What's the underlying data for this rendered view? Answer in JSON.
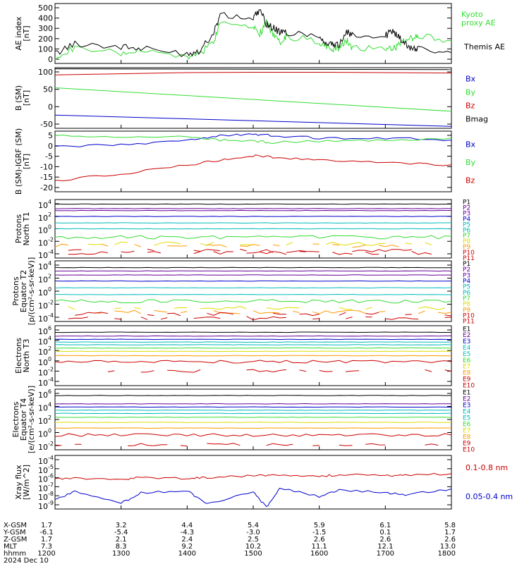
{
  "colors": {
    "black": "#000000",
    "red": "#cc0000",
    "green": "#33dd33",
    "blue": "#0000cc",
    "purple": "#660099",
    "cyan": "#00bbbb",
    "yellow": "#dddd00",
    "orange": "#ff9900"
  },
  "chart_data": [
    {
      "type": "line",
      "ylabel": [
        "AE index",
        "[nT]"
      ],
      "yticks": [
        "500",
        "400",
        "300",
        "200",
        "100",
        "0"
      ],
      "ylim": [
        0,
        500
      ],
      "series": [
        {
          "name": "Kyoto proxy AE",
          "name_lines": [
            "Kyoto",
            "proxy AE"
          ],
          "color": "green",
          "x": [
            1200,
            1230,
            1300,
            1330,
            1400,
            1420,
            1440,
            1450,
            1500,
            1510,
            1520,
            1530,
            1540,
            1550,
            1600,
            1610,
            1620,
            1630,
            1640,
            1650,
            1700,
            1710,
            1720,
            1730,
            1740,
            1750,
            1800
          ],
          "y": [
            60,
            130,
            80,
            110,
            50,
            90,
            180,
            350,
            320,
            250,
            340,
            250,
            180,
            230,
            180,
            150,
            120,
            130,
            200,
            130,
            130,
            110,
            150,
            200,
            210,
            230,
            190
          ]
        },
        {
          "name": "Themis AE",
          "name_lines": [
            "Themis AE"
          ],
          "color": "black",
          "x": [
            1200,
            1230,
            1300,
            1330,
            1400,
            1420,
            1440,
            1450,
            1500,
            1510,
            1520,
            1530,
            1540,
            1550,
            1600,
            1610,
            1620,
            1630,
            1640,
            1650,
            1700,
            1710,
            1720,
            1730,
            1740,
            1750,
            1800
          ],
          "y": [
            80,
            170,
            140,
            120,
            80,
            110,
            260,
            400,
            380,
            440,
            330,
            300,
            260,
            260,
            230,
            170,
            150,
            150,
            270,
            230,
            230,
            270,
            230,
            160,
            130,
            120,
            90
          ]
        }
      ]
    },
    {
      "type": "line",
      "ylabel": [
        "B (SM)",
        "[nT]"
      ],
      "yticks": [
        "100",
        "50",
        "0",
        "-50"
      ],
      "ylim": [
        -55,
        105
      ],
      "series": [
        {
          "name": "Bx",
          "color": "blue",
          "x": [
            1200,
            1800
          ],
          "y": [
            -20,
            -50
          ]
        },
        {
          "name": "By",
          "color": "green",
          "x": [
            1200,
            1800
          ],
          "y": [
            52,
            -10
          ]
        },
        {
          "name": "Bz",
          "color": "red",
          "x": [
            1200,
            1300,
            1400,
            1500,
            1600,
            1700,
            1800
          ],
          "y": [
            86,
            89,
            92,
            93,
            93,
            92,
            91
          ]
        },
        {
          "name": "Bmag",
          "color": "black",
          "x": [
            1200,
            1800
          ],
          "y": [
            102,
            100
          ]
        }
      ]
    },
    {
      "type": "line",
      "ylabel": [
        "B (SM)-IGRF (SM)",
        "[nT]"
      ],
      "yticks": [
        "5",
        "0",
        "-5",
        "-10",
        "-15",
        "-20"
      ],
      "ylim": [
        -21,
        6
      ],
      "series": [
        {
          "name": "Bx",
          "color": "blue",
          "x": [
            1200,
            1300,
            1400,
            1450,
            1500,
            1530,
            1600,
            1700,
            1800
          ],
          "y": [
            -1,
            0,
            2,
            4,
            4.5,
            4,
            3,
            3,
            2
          ]
        },
        {
          "name": "By",
          "color": "green",
          "x": [
            1200,
            1300,
            1400,
            1450,
            1500,
            1530,
            1600,
            1700,
            1800
          ],
          "y": [
            4,
            3,
            3.5,
            2,
            1.5,
            1,
            1.5,
            2,
            3
          ]
        },
        {
          "name": "Bz",
          "color": "red",
          "x": [
            1200,
            1300,
            1400,
            1450,
            1500,
            1530,
            1600,
            1700,
            1800
          ],
          "y": [
            -16,
            -13,
            -9,
            -7,
            -5,
            -5.5,
            -7,
            -8,
            -9
          ]
        }
      ]
    },
    {
      "type": "line",
      "log": true,
      "ylabel": [
        "Protons",
        "North T1"
      ],
      "yticks": [
        {
          "base": "10",
          "exp": "4"
        },
        {
          "base": "10",
          "exp": "2"
        },
        {
          "base": "10",
          "exp": "0"
        },
        {
          "base": "10",
          "exp": "-2"
        },
        {
          "base": "10",
          "exp": "-4"
        }
      ],
      "ylim": [
        -5,
        4
      ],
      "channels": [
        {
          "name": "P1",
          "color": "black",
          "log10": 3.3
        },
        {
          "name": "P2",
          "color": "purple",
          "log10": 2.6
        },
        {
          "name": "P3",
          "color": "purple",
          "log10": 2.3
        },
        {
          "name": "P4",
          "color": "blue",
          "log10": 1.4
        },
        {
          "name": "P5",
          "color": "cyan",
          "log10": 0.4
        },
        {
          "name": "P6",
          "color": "cyan",
          "log10": -0.5
        },
        {
          "name": "P7",
          "color": "green",
          "log10": -1.8
        },
        {
          "name": "P8",
          "color": "yellow",
          "log10": -2.8
        },
        {
          "name": "P9",
          "color": "orange",
          "log10": -3.1
        },
        {
          "name": "P10",
          "color": "red",
          "log10": -3.9
        },
        {
          "name": "P11",
          "color": "red",
          "log10": -4.2
        }
      ]
    },
    {
      "type": "line",
      "log": true,
      "ylabel": [
        "Protons",
        "Equator T2",
        "[p/(cm²-s-sr-keV)]"
      ],
      "yticks": [
        {
          "base": "10",
          "exp": "4"
        },
        {
          "base": "10",
          "exp": "2"
        },
        {
          "base": "10",
          "exp": "0"
        },
        {
          "base": "10",
          "exp": "-2"
        },
        {
          "base": "10",
          "exp": "-4"
        }
      ],
      "ylim": [
        -5,
        4
      ],
      "channels": [
        {
          "name": "P1",
          "color": "black",
          "log10": 3.0
        },
        {
          "name": "P2",
          "color": "purple",
          "log10": 2.5
        },
        {
          "name": "P3",
          "color": "purple",
          "log10": 1.9
        },
        {
          "name": "P4",
          "color": "blue",
          "log10": 1.0
        },
        {
          "name": "P5",
          "color": "cyan",
          "log10": 0.0
        },
        {
          "name": "P6",
          "color": "cyan",
          "log10": -1.0
        },
        {
          "name": "P7",
          "color": "green",
          "log10": -2.0
        },
        {
          "name": "P8",
          "color": "yellow",
          "log10": -3.0
        },
        {
          "name": "P9",
          "color": "orange",
          "log10": -3.6
        },
        {
          "name": "P10",
          "color": "red",
          "log10": -3.9
        },
        {
          "name": "P11",
          "color": "red",
          "log10": -4.5
        }
      ]
    },
    {
      "type": "line",
      "log": true,
      "ylabel": [
        "Electrons",
        "North T3"
      ],
      "yticks": [
        {
          "base": "10",
          "exp": "6"
        },
        {
          "base": "10",
          "exp": "4"
        },
        {
          "base": "10",
          "exp": "2"
        },
        {
          "base": "10",
          "exp": "0"
        },
        {
          "base": "10",
          "exp": "-2"
        },
        {
          "base": "10",
          "exp": "-4"
        }
      ],
      "ylim": [
        -4.5,
        6.5
      ],
      "channels": [
        {
          "name": "E1",
          "color": "black",
          "log10": 5.3
        },
        {
          "name": "E2",
          "color": "purple",
          "log10": 4.6
        },
        {
          "name": "E3",
          "color": "blue",
          "log10": 4.0
        },
        {
          "name": "E4",
          "color": "cyan",
          "log10": 3.5
        },
        {
          "name": "E5",
          "color": "cyan",
          "log10": 3.0
        },
        {
          "name": "E6",
          "color": "green",
          "log10": 2.4
        },
        {
          "name": "E7",
          "color": "yellow",
          "log10": 1.8
        },
        {
          "name": "E8",
          "color": "orange",
          "log10": 1.0
        },
        {
          "name": "E9",
          "color": "red",
          "log10": -0.1
        },
        {
          "name": "E10",
          "color": "red",
          "log10": -1.8
        }
      ]
    },
    {
      "type": "line",
      "log": true,
      "ylabel": [
        "Electrons",
        "Equator T4",
        "[e/(cm²-s-sr-keV)]"
      ],
      "yticks": [
        {
          "base": "10",
          "exp": "6"
        },
        {
          "base": "10",
          "exp": "4"
        },
        {
          "base": "10",
          "exp": "2"
        },
        {
          "base": "10",
          "exp": "0"
        },
        {
          "base": "10",
          "exp": "-2"
        }
      ],
      "ylim": [
        -3,
        6.5
      ],
      "channels": [
        {
          "name": "E1",
          "color": "black",
          "log10": 5.5
        },
        {
          "name": "E2",
          "color": "purple",
          "log10": 4.2
        },
        {
          "name": "E3",
          "color": "blue",
          "log10": 3.7
        },
        {
          "name": "E4",
          "color": "cyan",
          "log10": 3.2
        },
        {
          "name": "E5",
          "color": "cyan",
          "log10": 2.7
        },
        {
          "name": "E6",
          "color": "green",
          "log10": 2.1
        },
        {
          "name": "E7",
          "color": "yellow",
          "log10": 1.3
        },
        {
          "name": "E8",
          "color": "orange",
          "log10": 0.4
        },
        {
          "name": "E9",
          "color": "red",
          "log10": -0.7
        },
        {
          "name": "E10",
          "color": "red",
          "log10": -2.2
        }
      ]
    },
    {
      "type": "line",
      "log": true,
      "ylabel": [
        "Xray flux",
        "[W/m^2]"
      ],
      "yticks": [
        {
          "base": "10",
          "exp": "-4"
        },
        {
          "base": "10",
          "exp": "-5"
        },
        {
          "base": "10",
          "exp": "-6"
        },
        {
          "base": "10",
          "exp": "-7"
        },
        {
          "base": "10",
          "exp": "-8"
        },
        {
          "base": "10",
          "exp": "-9"
        }
      ],
      "ylim": [
        -9.3,
        -3.7
      ],
      "series": [
        {
          "name": "0.1-0.8 nm",
          "color": "red",
          "x": [
            1200,
            1230,
            1300,
            1330,
            1400,
            1430,
            1500,
            1530,
            1600,
            1630,
            1700,
            1730,
            1800
          ],
          "y": [
            -6.1,
            -6.1,
            -6.2,
            -6.0,
            -6.1,
            -6.0,
            -5.8,
            -5.8,
            -5.9,
            -5.7,
            -5.8,
            -5.8,
            -5.6
          ]
        },
        {
          "name": "0.05-0.4 nm",
          "color": "blue",
          "x": [
            1200,
            1230,
            1300,
            1330,
            1400,
            1430,
            1500,
            1520,
            1540,
            1600,
            1630,
            1700,
            1730,
            1800
          ],
          "y": [
            -8.3,
            -7.5,
            -8.7,
            -7.6,
            -7.4,
            -8.8,
            -7.5,
            -9.1,
            -7.1,
            -8.0,
            -7.3,
            -7.6,
            -7.8,
            -7.2
          ]
        }
      ]
    }
  ],
  "x_axis": {
    "xlim": [
      1200,
      1800
    ],
    "row_labels": [
      "X-GSM",
      "Y-GSM",
      "Z-GSM",
      "MLT",
      "hhmm"
    ],
    "date": "2024 Dec 10",
    "ticks": [
      {
        "hhmm": "1200",
        "x": "1.7",
        "y": "-6.1",
        "z": "1.7",
        "mlt": "7.3"
      },
      {
        "hhmm": "1300",
        "x": "3.2",
        "y": "-5.4",
        "z": "2.1",
        "mlt": "8.3"
      },
      {
        "hhmm": "1400",
        "x": "4.4",
        "y": "-4.3",
        "z": "2.4",
        "mlt": "9.2"
      },
      {
        "hhmm": "1500",
        "x": "5.4",
        "y": "-3.0",
        "z": "2.5",
        "mlt": "10.2"
      },
      {
        "hhmm": "1600",
        "x": "5.9",
        "y": "-1.5",
        "z": "2.6",
        "mlt": "11.1"
      },
      {
        "hhmm": "1700",
        "x": "6.1",
        "y": "0.1",
        "z": "2.6",
        "mlt": "12.1"
      },
      {
        "hhmm": "1800",
        "x": "5.8",
        "y": "1.7",
        "z": "2.6",
        "mlt": "13.0"
      }
    ]
  }
}
